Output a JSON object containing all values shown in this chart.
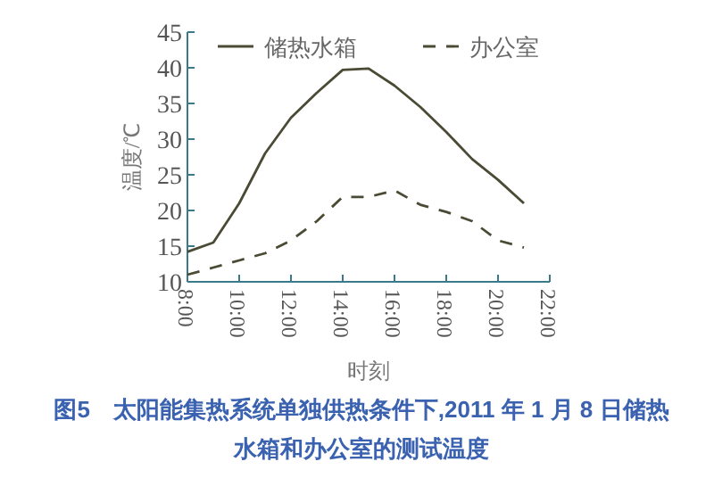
{
  "chart_data": {
    "type": "line",
    "xlabel": "时刻",
    "ylabel": "温度/℃",
    "x": [
      8,
      9,
      10,
      11,
      12,
      13,
      14,
      15,
      16,
      17,
      18,
      19,
      20,
      21
    ],
    "series": [
      {
        "name": "储热水箱",
        "color": "#4a4a35",
        "line_style": "solid",
        "values": [
          14.2,
          15.5,
          21,
          28,
          33,
          36.5,
          39.7,
          39.9,
          37.5,
          34.5,
          31,
          27.2,
          24.3,
          21
        ]
      },
      {
        "name": "办公室",
        "color": "#4a4a35",
        "line_style": "dashed",
        "values": [
          11,
          12,
          13,
          14,
          15.8,
          18.5,
          21.9,
          21.9,
          22.8,
          20.8,
          19.8,
          18.5,
          15.8,
          14.8
        ]
      }
    ],
    "xlim": [
      8,
      22
    ],
    "xticks": [
      {
        "value": 8,
        "label": "8:00"
      },
      {
        "value": 10,
        "label": "10:00"
      },
      {
        "value": 12,
        "label": "12:00"
      },
      {
        "value": 14,
        "label": "14:00"
      },
      {
        "value": 16,
        "label": "16:00"
      },
      {
        "value": 18,
        "label": "18:00"
      },
      {
        "value": 20,
        "label": "20:00"
      },
      {
        "value": 22,
        "label": "22:00"
      }
    ],
    "ylim": [
      10,
      45
    ],
    "yticks": [
      10,
      15,
      20,
      25,
      30,
      35,
      40,
      45
    ],
    "legend": "top",
    "grid": false,
    "marker": "none",
    "annotations": [
      "图5　太阳能集热系统单独供热条件下,2011 年 1 月 8 日储热水箱和办公室的测试温度"
    ]
  }
}
